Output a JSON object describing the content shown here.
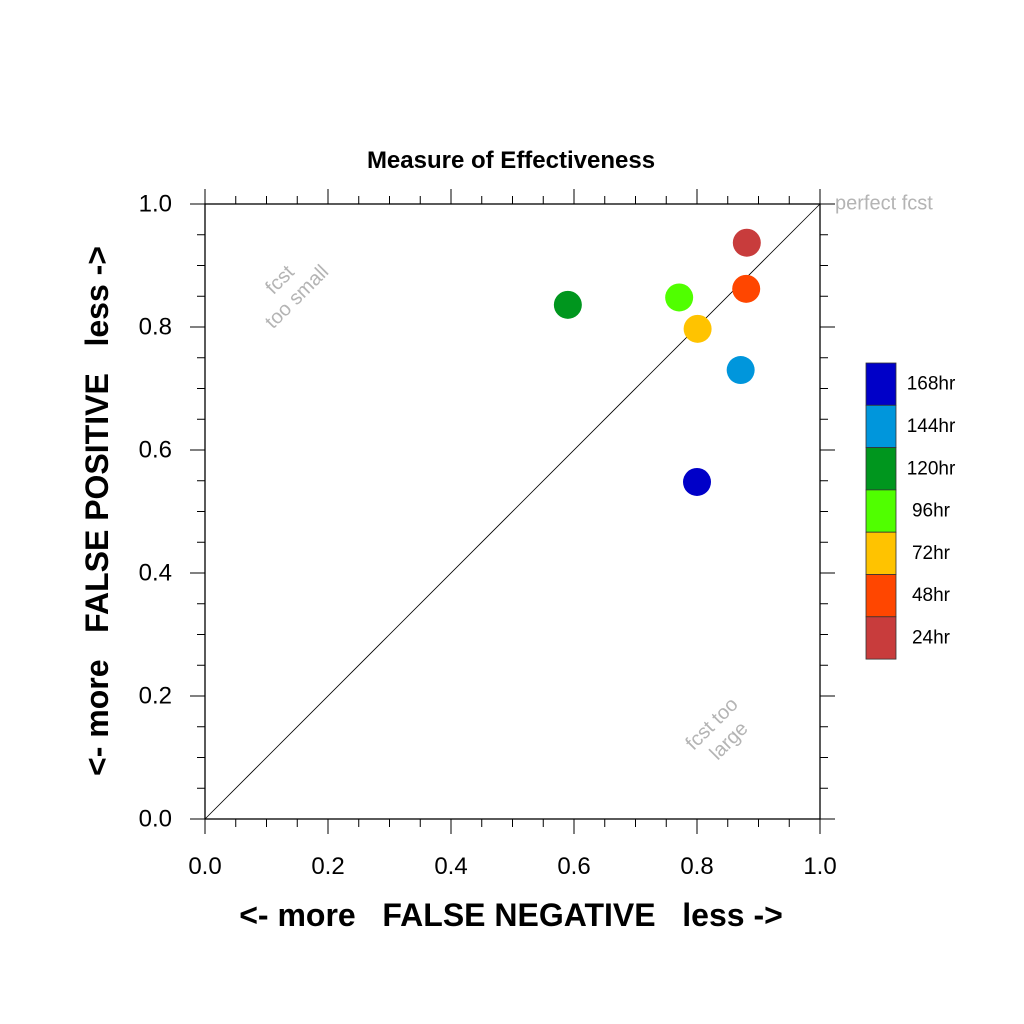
{
  "chart_data": {
    "type": "scatter",
    "title": "Measure of Effectiveness",
    "xlabel": "<- more   FALSE NEGATIVE   less ->",
    "ylabel": "<- more   FALSE POSITIVE   less ->",
    "xlim": [
      0.0,
      1.0
    ],
    "ylim": [
      0.0,
      1.0
    ],
    "xticks": [
      "0.0",
      "0.2",
      "0.4",
      "0.6",
      "0.8",
      "1.0"
    ],
    "yticks": [
      "0.0",
      "0.2",
      "0.4",
      "0.6",
      "0.8",
      "1.0"
    ],
    "diagonal": true,
    "grid": false,
    "legend_position": "right",
    "annotations": {
      "perfect": "perfect fcst",
      "small_line1": "fcst",
      "small_line2": "too small",
      "large_line1": "fcst too",
      "large_line2": "large"
    },
    "series": [
      {
        "name": "168hr",
        "color": "#0000c8",
        "x": 0.8,
        "y": 0.548
      },
      {
        "name": "144hr",
        "color": "#0096dc",
        "x": 0.871,
        "y": 0.73
      },
      {
        "name": "120hr",
        "color": "#00961e",
        "x": 0.59,
        "y": 0.836
      },
      {
        "name": "96hr",
        "color": "#50ff00",
        "x": 0.771,
        "y": 0.848
      },
      {
        "name": "72hr",
        "color": "#ffc300",
        "x": 0.801,
        "y": 0.797
      },
      {
        "name": "48hr",
        "color": "#ff4600",
        "x": 0.88,
        "y": 0.862
      },
      {
        "name": "24hr",
        "color": "#c83c3c",
        "x": 0.881,
        "y": 0.937
      }
    ]
  }
}
